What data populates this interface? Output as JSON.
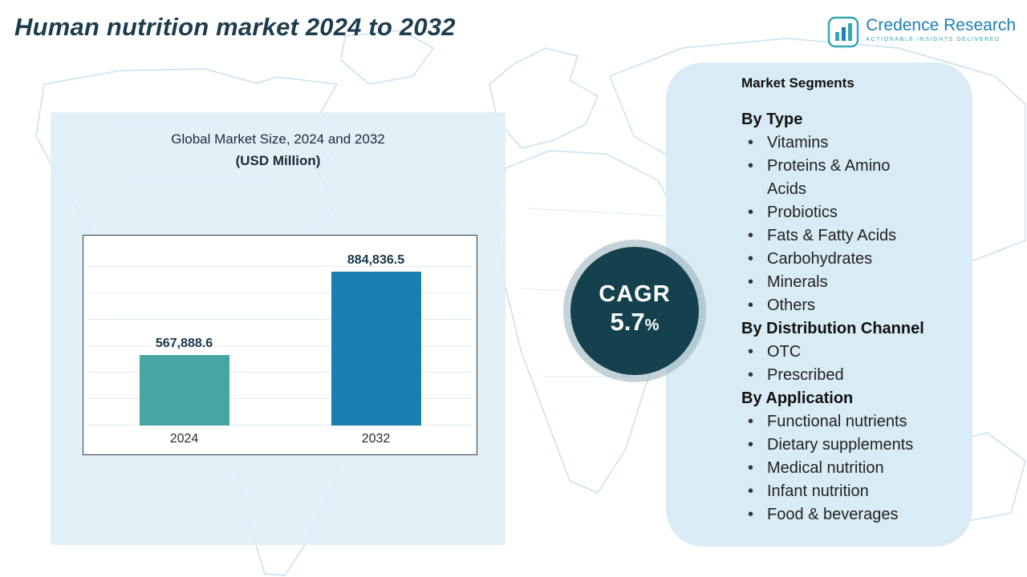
{
  "page": {
    "title": "Human nutrition market 2024 to 2032"
  },
  "logo": {
    "brand": "Credence Research",
    "tagline": "Actionable Insights Delivered"
  },
  "chart_panel": {
    "heading_line1": "Global Market Size, 2024 and 2032",
    "heading_line2": "(USD Million)"
  },
  "chart_data": {
    "type": "bar",
    "title": "Global Market Size, 2024 and 2032 (USD Million)",
    "categories": [
      "2024",
      "2032"
    ],
    "values": [
      567888.6,
      884836.5
    ],
    "value_labels": [
      "567,888.6",
      "884,836.5"
    ],
    "bar_colors": [
      "#47a5a2",
      "#1b7fb2"
    ],
    "xlabel": "",
    "ylabel": "",
    "ylim": [
      300000,
      1000000
    ],
    "grid": true,
    "legend": false
  },
  "cagr": {
    "label": "CAGR",
    "value": "5.7",
    "unit": "%"
  },
  "segments": {
    "title": "Market Segments",
    "groups": [
      {
        "heading": "By Type",
        "items": [
          "Vitamins",
          "Proteins & Amino Acids",
          "Probiotics",
          "Fats & Fatty Acids",
          "Carbohydrates",
          "Minerals",
          "Others"
        ]
      },
      {
        "heading": "By Distribution Channel",
        "items": [
          "OTC",
          "Prescribed"
        ]
      },
      {
        "heading": "By Application",
        "items": [
          "Functional nutrients",
          "Dietary supplements",
          "Medical nutrition",
          "Infant nutrition",
          "Food & beverages"
        ]
      }
    ]
  },
  "colors": {
    "accent_teal": "#47a5a2",
    "accent_blue": "#1b7fb2",
    "cagr_circle": "#15414e",
    "panel_bg": "#d9ebf4",
    "title_color": "#1d3c4d"
  }
}
